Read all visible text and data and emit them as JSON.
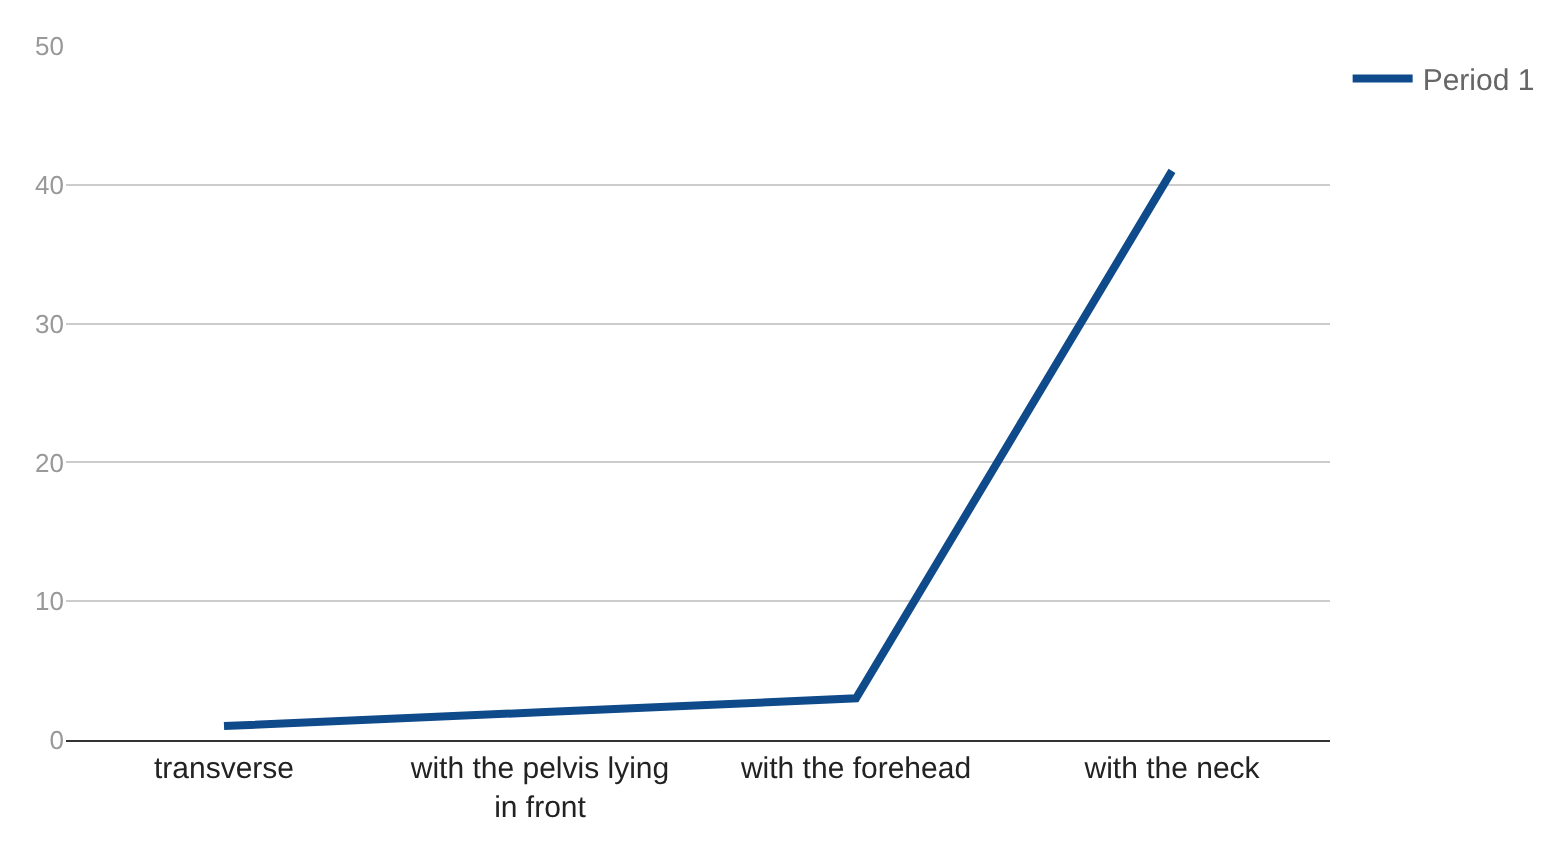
{
  "chart_data": {
    "type": "line",
    "categories": [
      "transverse",
      "with the pelvis lying in front",
      "with the forehead",
      "with the neck"
    ],
    "series": [
      {
        "name": "Period 1",
        "color": "#0f4a8a",
        "values": [
          1,
          2,
          3,
          41
        ]
      }
    ],
    "ylim": [
      0,
      50
    ],
    "yticks": [
      0,
      10,
      20,
      30,
      40,
      50
    ],
    "grid": "y",
    "legend": "top right",
    "marker": "none",
    "line_style": "solid"
  }
}
